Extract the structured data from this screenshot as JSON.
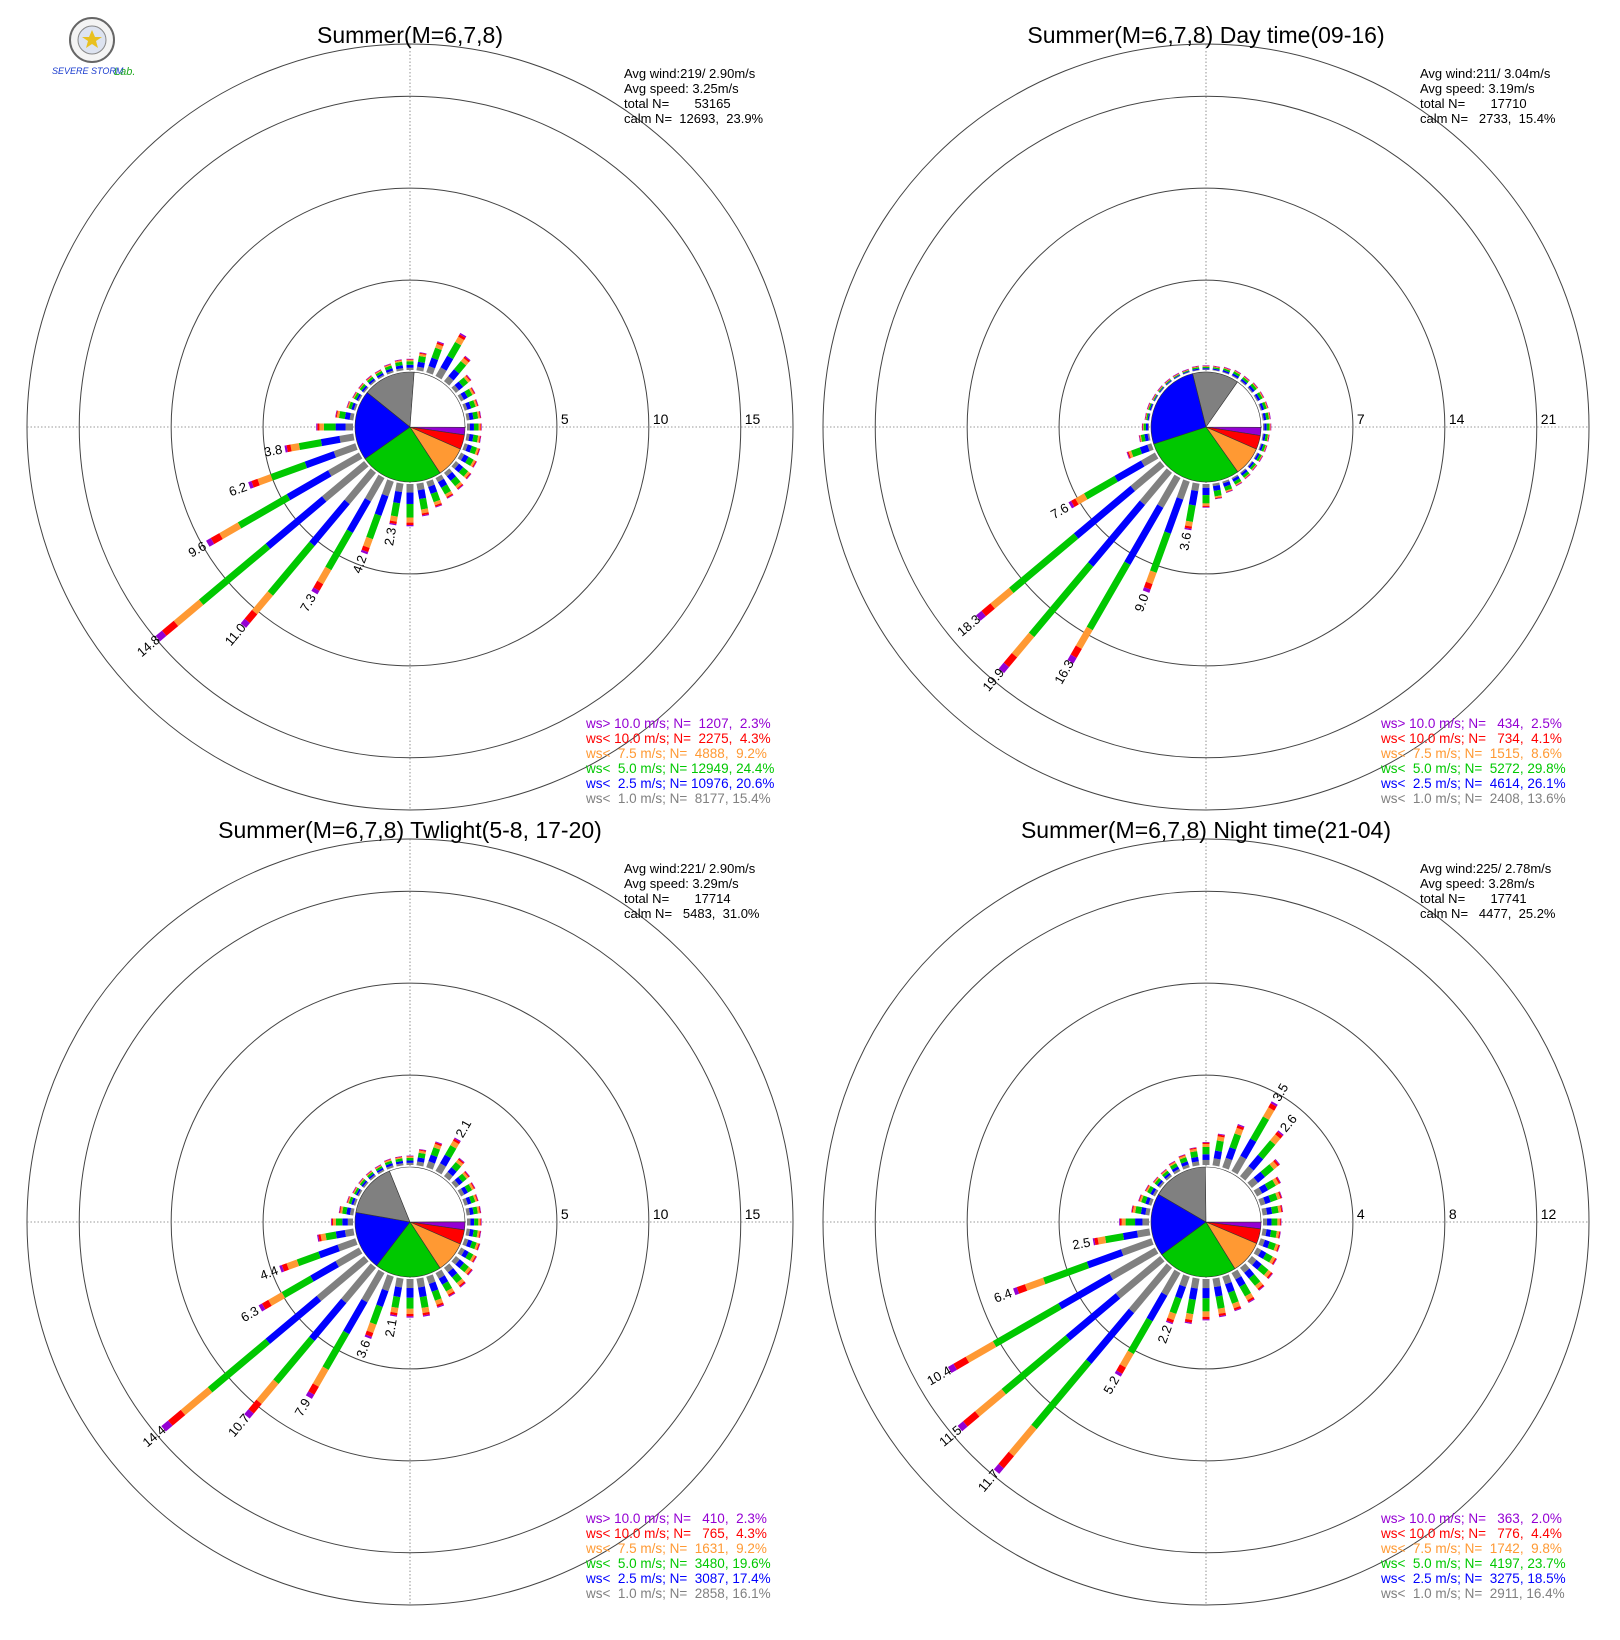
{
  "logo": {
    "text_left": "SEVERE STORM",
    "text_right": "Lab."
  },
  "chart_data": [
    {
      "type": "wind-rose",
      "title": "Summer(M=6,7,8)",
      "rlim": [
        0,
        15
      ],
      "ring_labels": [
        "5",
        "10",
        "15"
      ],
      "grid": true,
      "stats": {
        "avg_wind": "Avg wind:219/ 2.90m/s",
        "avg_speed": "Avg speed: 3.25m/s",
        "total": "total N=       53165",
        "calm": "calm N=  12693,  23.9%"
      },
      "calm_pie": [
        {
          "class": "ws> 10.0",
          "pct": 2.3
        },
        {
          "class": "ws< 10.0",
          "pct": 4.3
        },
        {
          "class": "ws< 7.5",
          "pct": 9.2
        },
        {
          "class": "ws< 5.0",
          "pct": 24.4
        },
        {
          "class": "ws< 2.5",
          "pct": 20.6
        },
        {
          "class": "ws< 1.0",
          "pct": 15.4
        },
        {
          "class": "calm",
          "pct": 23.9
        }
      ],
      "directions_deg": [
        0,
        10,
        20,
        30,
        40,
        50,
        60,
        70,
        80,
        90,
        100,
        110,
        120,
        130,
        140,
        150,
        160,
        170,
        180,
        190,
        200,
        210,
        220,
        230,
        240,
        250,
        260,
        270,
        280,
        290,
        300,
        310,
        320,
        330,
        340,
        350
      ],
      "totals": [
        0.6,
        1.0,
        1.8,
        2.7,
        1.8,
        1.1,
        0.9,
        0.8,
        0.8,
        0.8,
        0.8,
        0.9,
        1.0,
        1.1,
        1.2,
        1.3,
        1.5,
        1.8,
        2.3,
        2.3,
        4.2,
        7.3,
        11.0,
        14.8,
        9.6,
        6.2,
        3.8,
        2.0,
        1.0,
        0.5,
        0.4,
        0.4,
        0.4,
        0.4,
        0.5,
        0.6
      ],
      "labeled": {
        "190": "2.3",
        "200": "4.2",
        "210": "7.3",
        "220": "11.0",
        "230": "14.8",
        "240": "9.6",
        "250": "6.2",
        "260": "3.8"
      },
      "legend": [
        {
          "label": "ws> 10.0 m/s; N=  1207,  2.3%",
          "color": "#9400d3"
        },
        {
          "label": "ws< 10.0 m/s; N=  2275,  4.3%",
          "color": "#ff0000"
        },
        {
          "label": "ws<  7.5 m/s; N=  4888,  9.2%",
          "color": "#ff9933"
        },
        {
          "label": "ws<  5.0 m/s; N= 12949, 24.4%",
          "color": "#00c800"
        },
        {
          "label": "ws<  2.5 m/s; N= 10976, 20.6%",
          "color": "#0000ff"
        },
        {
          "label": "ws<  1.0 m/s; N=  8177, 15.4%",
          "color": "#808080"
        }
      ]
    },
    {
      "type": "wind-rose",
      "title": "Summer(M=6,7,8) Day time(09-16)",
      "rlim": [
        0,
        21
      ],
      "ring_labels": [
        "7",
        "14",
        "21"
      ],
      "grid": true,
      "stats": {
        "avg_wind": "Avg wind:211/ 3.04m/s",
        "avg_speed": "Avg speed: 3.19m/s",
        "total": "total N=       17710",
        "calm": "calm N=   2733,  15.4%"
      },
      "calm_pie": [
        {
          "class": "ws> 10.0",
          "pct": 2.5
        },
        {
          "class": "ws< 10.0",
          "pct": 4.1
        },
        {
          "class": "ws< 7.5",
          "pct": 8.6
        },
        {
          "class": "ws< 5.0",
          "pct": 29.8
        },
        {
          "class": "ws< 2.5",
          "pct": 26.1
        },
        {
          "class": "ws< 1.0",
          "pct": 13.6
        },
        {
          "class": "calm",
          "pct": 15.4
        }
      ],
      "directions_deg": [
        0,
        10,
        20,
        30,
        40,
        50,
        60,
        70,
        80,
        90,
        100,
        110,
        120,
        130,
        140,
        150,
        160,
        170,
        180,
        190,
        200,
        210,
        220,
        230,
        240,
        250,
        260,
        270,
        280,
        290,
        300,
        310,
        320,
        330,
        340,
        350
      ],
      "totals": [
        0.3,
        0.3,
        0.4,
        0.5,
        0.5,
        0.6,
        0.6,
        0.6,
        0.6,
        0.6,
        0.5,
        0.5,
        0.5,
        0.5,
        0.6,
        0.7,
        0.9,
        1.2,
        1.8,
        3.6,
        9.0,
        16.3,
        19.9,
        18.3,
        7.6,
        2.0,
        0.8,
        0.5,
        0.3,
        0.3,
        0.2,
        0.2,
        0.2,
        0.2,
        0.2,
        0.3
      ],
      "labeled": {
        "190": "3.6",
        "200": "9.0",
        "210": "16.3",
        "220": "19.9",
        "230": "18.3",
        "240": "7.6"
      },
      "legend": [
        {
          "label": "ws> 10.0 m/s; N=   434,  2.5%",
          "color": "#9400d3"
        },
        {
          "label": "ws< 10.0 m/s; N=   734,  4.1%",
          "color": "#ff0000"
        },
        {
          "label": "ws<  7.5 m/s; N=  1515,  8.6%",
          "color": "#ff9933"
        },
        {
          "label": "ws<  5.0 m/s; N=  5272, 29.8%",
          "color": "#00c800"
        },
        {
          "label": "ws<  2.5 m/s; N=  4614, 26.1%",
          "color": "#0000ff"
        },
        {
          "label": "ws<  1.0 m/s; N=  2408, 13.6%",
          "color": "#808080"
        }
      ]
    },
    {
      "type": "wind-rose",
      "title": "Summer(M=6,7,8) Twlight(5-8, 17-20)",
      "rlim": [
        0,
        15
      ],
      "ring_labels": [
        "5",
        "10",
        "15"
      ],
      "grid": true,
      "stats": {
        "avg_wind": "Avg wind:221/ 2.90m/s",
        "avg_speed": "Avg speed: 3.29m/s",
        "total": "total N=       17714",
        "calm": "calm N=   5483,  31.0%"
      },
      "calm_pie": [
        {
          "class": "ws> 10.0",
          "pct": 2.3
        },
        {
          "class": "ws< 10.0",
          "pct": 4.3
        },
        {
          "class": "ws< 7.5",
          "pct": 9.2
        },
        {
          "class": "ws< 5.0",
          "pct": 19.6
        },
        {
          "class": "ws< 2.5",
          "pct": 17.4
        },
        {
          "class": "ws< 1.0",
          "pct": 16.1
        },
        {
          "class": "calm",
          "pct": 31.0
        }
      ],
      "directions_deg": [
        0,
        10,
        20,
        30,
        40,
        50,
        60,
        70,
        80,
        90,
        100,
        110,
        120,
        130,
        140,
        150,
        160,
        170,
        180,
        190,
        200,
        210,
        220,
        230,
        240,
        250,
        260,
        270,
        280,
        290,
        300,
        310,
        320,
        330,
        340,
        350
      ],
      "totals": [
        0.5,
        0.9,
        1.5,
        2.1,
        1.3,
        1.0,
        0.9,
        0.8,
        0.8,
        0.8,
        0.8,
        0.9,
        1.0,
        1.2,
        1.4,
        1.5,
        1.8,
        2.1,
        2.1,
        2.1,
        3.6,
        7.9,
        10.7,
        14.4,
        6.3,
        4.4,
        2.0,
        1.2,
        0.8,
        0.5,
        0.4,
        0.4,
        0.4,
        0.4,
        0.5,
        0.5
      ],
      "labeled": {
        "30": "2.1",
        "190": "2.1",
        "200": "3.6",
        "210": "7.9",
        "220": "10.7",
        "230": "14.4",
        "240": "6.3",
        "250": "4.4"
      },
      "legend": [
        {
          "label": "ws> 10.0 m/s; N=   410,  2.3%",
          "color": "#9400d3"
        },
        {
          "label": "ws< 10.0 m/s; N=   765,  4.3%",
          "color": "#ff0000"
        },
        {
          "label": "ws<  7.5 m/s; N=  1631,  9.2%",
          "color": "#ff9933"
        },
        {
          "label": "ws<  5.0 m/s; N=  3480, 19.6%",
          "color": "#00c800"
        },
        {
          "label": "ws<  2.5 m/s; N=  3087, 17.4%",
          "color": "#0000ff"
        },
        {
          "label": "ws<  1.0 m/s; N=  2858, 16.1%",
          "color": "#808080"
        }
      ]
    },
    {
      "type": "wind-rose",
      "title": "Summer(M=6,7,8) Night time(21-04)",
      "rlim": [
        0,
        12
      ],
      "ring_labels": [
        "4",
        "8",
        "12"
      ],
      "grid": true,
      "stats": {
        "avg_wind": "Avg wind:225/ 2.78m/s",
        "avg_speed": "Avg speed: 3.28m/s",
        "total": "total N=       17741",
        "calm": "calm N=   4477,  25.2%"
      },
      "calm_pie": [
        {
          "class": "ws> 10.0",
          "pct": 2.0
        },
        {
          "class": "ws< 10.0",
          "pct": 4.4
        },
        {
          "class": "ws< 7.5",
          "pct": 9.8
        },
        {
          "class": "ws< 5.0",
          "pct": 23.7
        },
        {
          "class": "ws< 2.5",
          "pct": 18.5
        },
        {
          "class": "ws< 1.0",
          "pct": 16.4
        },
        {
          "class": "calm",
          "pct": 25.2
        }
      ],
      "directions_deg": [
        0,
        10,
        20,
        30,
        40,
        50,
        60,
        70,
        80,
        90,
        100,
        110,
        120,
        130,
        140,
        150,
        160,
        170,
        180,
        190,
        200,
        210,
        220,
        230,
        240,
        250,
        260,
        270,
        280,
        290,
        300,
        310,
        320,
        330,
        340,
        350
      ],
      "totals": [
        1.0,
        1.4,
        2.0,
        3.5,
        2.6,
        1.6,
        1.2,
        1.0,
        0.9,
        0.8,
        0.8,
        0.9,
        1.0,
        1.2,
        1.3,
        1.5,
        1.6,
        1.7,
        1.8,
        2.0,
        2.2,
        5.2,
        11.7,
        11.5,
        10.4,
        6.4,
        2.5,
        1.3,
        0.8,
        0.6,
        0.5,
        0.4,
        0.4,
        0.5,
        0.6,
        0.8
      ],
      "labeled": {
        "30": "3.5",
        "40": "2.6",
        "200": "2.2",
        "210": "5.2",
        "220": "11.7",
        "230": "11.5",
        "240": "10.4",
        "250": "6.4",
        "260": "2.5"
      },
      "legend": [
        {
          "label": "ws> 10.0 m/s; N=   363,  2.0%",
          "color": "#9400d3"
        },
        {
          "label": "ws< 10.0 m/s; N=   776,  4.4%",
          "color": "#ff0000"
        },
        {
          "label": "ws<  7.5 m/s; N=  1742,  9.8%",
          "color": "#ff9933"
        },
        {
          "label": "ws<  5.0 m/s; N=  4197, 23.7%",
          "color": "#00c800"
        },
        {
          "label": "ws<  2.5 m/s; N=  3275, 18.5%",
          "color": "#0000ff"
        },
        {
          "label": "ws<  1.0 m/s; N=  2911, 16.4%",
          "color": "#808080"
        }
      ]
    }
  ]
}
